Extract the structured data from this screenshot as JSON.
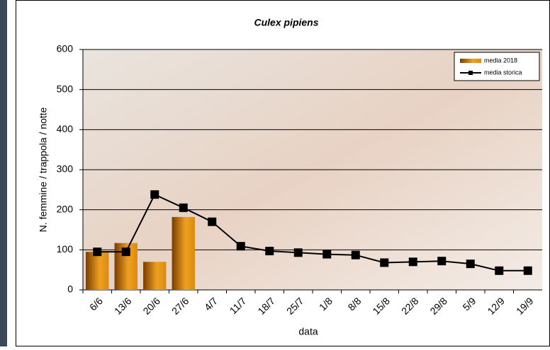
{
  "chart_data": {
    "type": "bar-line",
    "title": "Culex pipiens",
    "x_label": "data",
    "y_label": "N. femmine / trappola / notte",
    "categories": [
      "6/6",
      "13/6",
      "20/6",
      "27/6",
      "4/7",
      "11/7",
      "18/7",
      "25/7",
      "1/8",
      "8/8",
      "15/8",
      "22/8",
      "29/8",
      "5/9",
      "12/9",
      "19/9"
    ],
    "series": [
      {
        "name": "media 2018",
        "type": "bar",
        "color": "#f0a020",
        "values": [
          95,
          117,
          70,
          182,
          null,
          null,
          null,
          null,
          null,
          null,
          null,
          null,
          null,
          null,
          null,
          null
        ]
      },
      {
        "name": "media storica",
        "type": "line",
        "color": "#000000",
        "values": [
          95,
          95,
          238,
          205,
          170,
          109,
          97,
          93,
          89,
          87,
          68,
          70,
          72,
          65,
          48,
          48
        ]
      }
    ],
    "ylim": [
      0,
      600
    ],
    "yticks": [
      0,
      100,
      200,
      300,
      400,
      500,
      600
    ],
    "grid": true,
    "legend": "top-right"
  }
}
